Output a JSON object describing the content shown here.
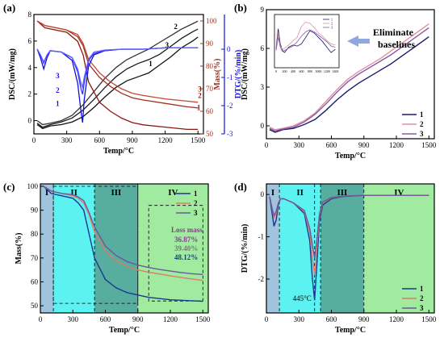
{
  "figure": {
    "panels": [
      "(a)",
      "(b)",
      "(c)",
      "(d)"
    ]
  },
  "colors": {
    "dsc1": "#111111",
    "dsc2": "#333333",
    "dsc3": "#1a1a1a",
    "mass1": "#8b1a0e",
    "mass2": "#a03020",
    "mass3": "#c04a32",
    "dtg1": "#1010e0",
    "dtg2": "#3030ff",
    "dtg3": "#6060ff",
    "b1": "#1a1a6e",
    "b2": "#e090a0",
    "b3": "#8a5aa8",
    "c1": "#1a3a8e",
    "c2": "#e07a6a",
    "c3": "#6a5a9a",
    "regionI": "#8fb8d8",
    "regionII": "#40f0f0",
    "regionIII": "#3aa08e",
    "regionIV": "#90e890"
  },
  "chart_data": [
    {
      "panel": "(a)",
      "type": "line",
      "xlabel": "Temp/°C",
      "ylabel": "DSC/(mW/mg)",
      "y2label": "Mass(%)",
      "y3label": "DTG/(%/min)",
      "xlim": [
        0,
        1550
      ],
      "ylim": [
        -1,
        8
      ],
      "y2lim": [
        50,
        100
      ],
      "y3lim": [
        -3,
        1
      ],
      "xticks": [
        "0",
        "300",
        "600",
        "900",
        "1200",
        "1500"
      ],
      "yticks": [
        "0",
        "2",
        "4",
        "6",
        "8"
      ],
      "y2ticks": [
        "50",
        "60",
        "70",
        "80",
        "90",
        "100"
      ],
      "y3ticks": [
        "-3",
        "-2",
        "-1",
        "0"
      ],
      "series": [
        {
          "name": "1",
          "axis": "y",
          "x": [
            30,
            80,
            150,
            250,
            350,
            450,
            550,
            650,
            750,
            850,
            950,
            1050,
            1150,
            1250,
            1350,
            1450,
            1500
          ],
          "values": [
            -0.3,
            -0.6,
            -0.4,
            -0.3,
            -0.1,
            0.3,
            1.0,
            1.8,
            2.5,
            3.0,
            3.3,
            3.6,
            4.2,
            4.8,
            5.5,
            6.0,
            6.3
          ]
        },
        {
          "name": "2",
          "axis": "y",
          "x": [
            30,
            80,
            150,
            250,
            350,
            450,
            550,
            650,
            750,
            850,
            950,
            1050,
            1150,
            1250,
            1350,
            1450,
            1500
          ],
          "values": [
            0.0,
            -0.3,
            -0.2,
            0.0,
            0.4,
            1.2,
            2.2,
            3.2,
            4.0,
            4.6,
            5.0,
            5.4,
            5.9,
            6.4,
            6.9,
            7.3,
            7.5
          ]
        },
        {
          "name": "3",
          "axis": "y",
          "x": [
            30,
            80,
            150,
            250,
            350,
            450,
            550,
            650,
            750,
            850,
            950,
            1050,
            1150,
            1250,
            1350,
            1450,
            1500
          ],
          "values": [
            -0.2,
            -0.5,
            -0.3,
            -0.1,
            0.2,
            0.8,
            1.6,
            2.5,
            3.3,
            3.9,
            4.3,
            4.6,
            5.0,
            5.6,
            6.2,
            6.7,
            6.9
          ]
        },
        {
          "name": "1",
          "axis": "y2",
          "x": [
            30,
            100,
            200,
            300,
            400,
            450,
            500,
            600,
            700,
            800,
            900,
            1000,
            1200,
            1400,
            1500
          ],
          "values": [
            100,
            97,
            96,
            95,
            91,
            85,
            73,
            64,
            60,
            57,
            55,
            54,
            53,
            52,
            52
          ]
        },
        {
          "name": "2",
          "axis": "y2",
          "x": [
            30,
            100,
            200,
            300,
            400,
            450,
            500,
            600,
            700,
            800,
            900,
            1000,
            1200,
            1400,
            1500
          ],
          "values": [
            100,
            98,
            97,
            96,
            93,
            89,
            81,
            75,
            71,
            68,
            66,
            65,
            63.5,
            62,
            61.5
          ]
        },
        {
          "name": "3",
          "axis": "y2",
          "x": [
            30,
            100,
            200,
            300,
            400,
            450,
            500,
            600,
            700,
            800,
            900,
            1000,
            1200,
            1400,
            1500
          ],
          "values": [
            100,
            98,
            97,
            96,
            94,
            90,
            83,
            77,
            73,
            70,
            68,
            67,
            65.5,
            64.5,
            64
          ]
        },
        {
          "name": "1",
          "axis": "y3",
          "x": [
            30,
            60,
            90,
            120,
            150,
            250,
            350,
            400,
            430,
            445,
            460,
            500,
            550,
            650,
            800,
            1000,
            1200,
            1500
          ],
          "values": [
            0,
            -0.3,
            -0.7,
            -0.3,
            -0.05,
            -0.1,
            -0.4,
            -1.2,
            -2.2,
            -2.6,
            -1.8,
            -0.6,
            -0.2,
            -0.05,
            0,
            0,
            0.05,
            0.05
          ]
        },
        {
          "name": "2",
          "axis": "y3",
          "x": [
            30,
            60,
            90,
            120,
            150,
            250,
            350,
            400,
            430,
            445,
            460,
            500,
            550,
            650,
            800,
            1000,
            1200,
            1500
          ],
          "values": [
            0,
            -0.2,
            -0.5,
            -0.2,
            -0.05,
            -0.1,
            -0.3,
            -0.8,
            -1.4,
            -1.6,
            -1.2,
            -0.4,
            -0.15,
            -0.05,
            0,
            0,
            0.05,
            0.05
          ]
        },
        {
          "name": "3",
          "axis": "y3",
          "x": [
            30,
            60,
            90,
            120,
            150,
            250,
            350,
            400,
            430,
            445,
            460,
            500,
            550,
            650,
            800,
            1000,
            1200,
            1500
          ],
          "values": [
            0,
            -0.2,
            -0.45,
            -0.2,
            -0.05,
            -0.1,
            -0.3,
            -0.7,
            -1.2,
            -1.35,
            -1.0,
            -0.35,
            -0.1,
            -0.03,
            0,
            0,
            0.05,
            0.05
          ]
        }
      ]
    },
    {
      "panel": "(b)",
      "type": "line",
      "xlabel": "Temp/°C",
      "ylabel": "DSC/(mW/mg)",
      "xlim": [
        0,
        1550
      ],
      "ylim": [
        -1,
        9
      ],
      "xticks": [
        "0",
        "300",
        "600",
        "900",
        "1200",
        "1500"
      ],
      "yticks": [
        "0",
        "3",
        "6",
        "9"
      ],
      "legend": [
        "1",
        "2",
        "3"
      ],
      "legend_position": "bottom-right",
      "annotation": "Eliminate baselines",
      "series": [
        {
          "name": "1",
          "x": [
            30,
            80,
            150,
            250,
            350,
            450,
            550,
            650,
            750,
            850,
            950,
            1050,
            1150,
            1250,
            1350,
            1450,
            1500
          ],
          "values": [
            -0.3,
            -0.5,
            -0.3,
            -0.2,
            0.1,
            0.5,
            1.2,
            2.0,
            2.7,
            3.3,
            3.8,
            4.3,
            4.8,
            5.4,
            6.0,
            6.6,
            6.9
          ]
        },
        {
          "name": "2",
          "x": [
            30,
            80,
            150,
            250,
            350,
            450,
            550,
            650,
            750,
            850,
            950,
            1050,
            1150,
            1250,
            1350,
            1450,
            1500
          ],
          "values": [
            -0.1,
            -0.3,
            -0.2,
            0.0,
            0.4,
            1.0,
            1.9,
            2.8,
            3.6,
            4.2,
            4.7,
            5.2,
            5.8,
            6.4,
            7.0,
            7.6,
            7.9
          ]
        },
        {
          "name": "3",
          "x": [
            30,
            80,
            150,
            250,
            350,
            450,
            550,
            650,
            750,
            850,
            950,
            1050,
            1150,
            1250,
            1350,
            1450,
            1500
          ],
          "values": [
            -0.2,
            -0.4,
            -0.25,
            -0.1,
            0.3,
            0.9,
            1.7,
            2.6,
            3.4,
            4.0,
            4.5,
            5.0,
            5.5,
            6.1,
            6.7,
            7.3,
            7.6
          ]
        }
      ],
      "inset": {
        "xticks": [
          "0",
          "200",
          "400",
          "600",
          "800",
          "1000",
          "1200",
          "1400"
        ],
        "legend": [
          "1",
          "2",
          "3"
        ]
      }
    },
    {
      "panel": "(c)",
      "type": "line",
      "xlabel": "Temp/°C",
      "ylabel": "Mass(%)",
      "xlim": [
        0,
        1550
      ],
      "ylim": [
        47,
        101
      ],
      "xticks": [
        "0",
        "300",
        "600",
        "900",
        "1200",
        "1500"
      ],
      "yticks": [
        "50",
        "60",
        "70",
        "80",
        "90",
        "100"
      ],
      "legend": [
        "1",
        "2",
        "3"
      ],
      "legend_position": "top-right",
      "regions": [
        {
          "label": "I",
          "x": [
            0,
            120
          ]
        },
        {
          "label": "II",
          "x": [
            120,
            500
          ]
        },
        {
          "label": "III",
          "x": [
            500,
            900
          ]
        },
        {
          "label": "IV",
          "x": [
            900,
            1550
          ]
        }
      ],
      "loss_mass_title": "Loss mass",
      "loss_mass": [
        "36.87%",
        "39.40%",
        "48.12%"
      ],
      "series": [
        {
          "name": "1",
          "x": [
            30,
            100,
            200,
            300,
            350,
            400,
            450,
            500,
            600,
            700,
            800,
            900,
            1000,
            1100,
            1200,
            1300,
            1400,
            1500
          ],
          "values": [
            100,
            97,
            96,
            95,
            93,
            90,
            80,
            70,
            61,
            57.5,
            55.5,
            54.5,
            53.5,
            53,
            52.5,
            52.3,
            52.1,
            51.9
          ]
        },
        {
          "name": "2",
          "x": [
            30,
            100,
            200,
            300,
            350,
            400,
            450,
            500,
            600,
            700,
            800,
            900,
            1000,
            1100,
            1200,
            1300,
            1400,
            1500
          ],
          "values": [
            100,
            98,
            97,
            96,
            95,
            93,
            88,
            81,
            73,
            69,
            66.5,
            65,
            64,
            63.3,
            62.5,
            61.8,
            61.2,
            60.6
          ]
        },
        {
          "name": "3",
          "x": [
            30,
            100,
            200,
            300,
            350,
            400,
            450,
            500,
            600,
            700,
            800,
            900,
            1000,
            1100,
            1200,
            1300,
            1400,
            1500
          ],
          "values": [
            100,
            98,
            97,
            96.5,
            95.5,
            94,
            89,
            83,
            75,
            71,
            68.5,
            67,
            66,
            65.2,
            64.5,
            63.9,
            63.4,
            63.1
          ]
        }
      ]
    },
    {
      "panel": "(d)",
      "type": "line",
      "xlabel": "Temp/°C",
      "ylabel": "DTG/(%/min)",
      "xlim": [
        0,
        1550
      ],
      "ylim": [
        -2.8,
        0.25
      ],
      "xticks": [
        "0",
        "300",
        "600",
        "900",
        "1200",
        "1500"
      ],
      "yticks": [
        "0",
        "-1",
        "-2"
      ],
      "legend": [
        "1",
        "2",
        "3"
      ],
      "legend_position": "bottom-right",
      "regions": [
        {
          "label": "I",
          "x": [
            0,
            120
          ]
        },
        {
          "label": "II",
          "x": [
            120,
            500
          ]
        },
        {
          "label": "III",
          "x": [
            500,
            900
          ]
        },
        {
          "label": "IV",
          "x": [
            900,
            1550
          ]
        }
      ],
      "annotation": "445°C",
      "series": [
        {
          "name": "1",
          "x": [
            30,
            50,
            70,
            90,
            110,
            130,
            160,
            250,
            350,
            400,
            425,
            445,
            465,
            490,
            520,
            600,
            700,
            900,
            1100,
            1300,
            1500
          ],
          "values": [
            -0.05,
            -0.4,
            -0.75,
            -0.6,
            -0.25,
            -0.1,
            -0.1,
            -0.2,
            -0.45,
            -1.1,
            -2.0,
            -2.5,
            -1.7,
            -0.6,
            -0.25,
            -0.1,
            -0.05,
            -0.02,
            -0.02,
            -0.02,
            -0.02
          ]
        },
        {
          "name": "2",
          "x": [
            30,
            50,
            70,
            90,
            110,
            130,
            160,
            250,
            350,
            400,
            425,
            445,
            465,
            490,
            520,
            600,
            700,
            900,
            1100,
            1300,
            1500
          ],
          "values": [
            -0.05,
            -0.3,
            -0.55,
            -0.45,
            -0.2,
            -0.1,
            -0.1,
            -0.2,
            -0.4,
            -0.9,
            -1.5,
            -1.9,
            -1.3,
            -0.5,
            -0.2,
            -0.08,
            -0.04,
            -0.02,
            -0.02,
            -0.02,
            -0.02
          ]
        },
        {
          "name": "3",
          "x": [
            30,
            50,
            70,
            90,
            110,
            130,
            160,
            250,
            350,
            400,
            425,
            445,
            465,
            490,
            520,
            600,
            700,
            900,
            1100,
            1300,
            1500
          ],
          "values": [
            -0.05,
            -0.3,
            -0.5,
            -0.4,
            -0.2,
            -0.1,
            -0.1,
            -0.2,
            -0.38,
            -0.8,
            -1.2,
            -1.5,
            -1.1,
            -0.45,
            -0.18,
            -0.07,
            -0.04,
            -0.02,
            -0.02,
            -0.02,
            -0.02
          ]
        }
      ]
    }
  ]
}
